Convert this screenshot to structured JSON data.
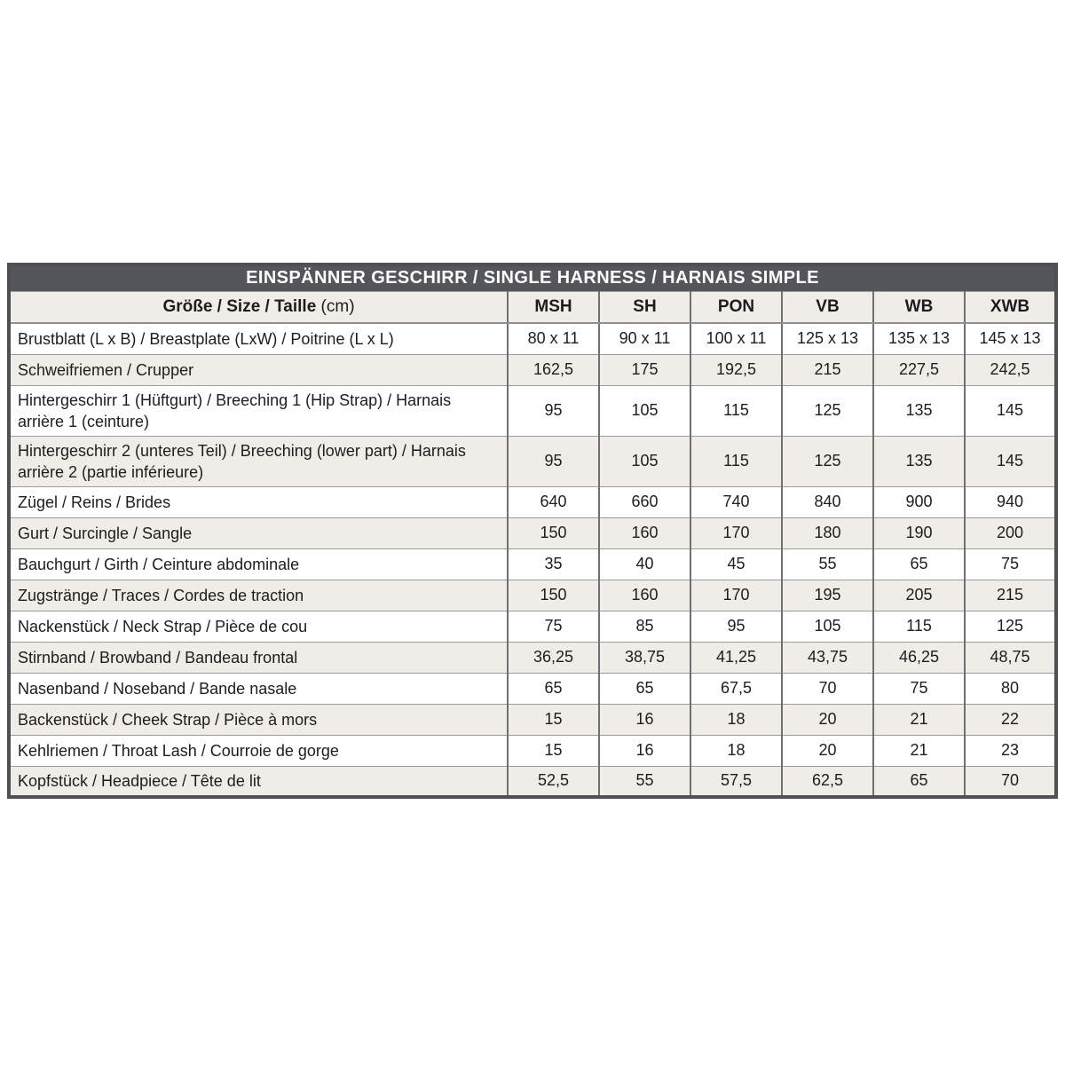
{
  "table": {
    "title": "EINSPÄNNER GESCHIRR / SINGLE HARNESS / HARNAIS SIMPLE",
    "header": {
      "label_bold": "Größe / Size / Taille",
      "label_unit": "(cm)",
      "columns": [
        "MSH",
        "SH",
        "PON",
        "VB",
        "WB",
        "XWB"
      ]
    },
    "rows": [
      {
        "label": "Brustblatt (L x B) / Breastplate (LxW) / Poitrine (L x L)",
        "values": [
          "80 x 11",
          "90 x 11",
          "100 x 11",
          "125 x 13",
          "135 x 13",
          "145 x 13"
        ]
      },
      {
        "label": "Schweifriemen / Crupper",
        "values": [
          "162,5",
          "175",
          "192,5",
          "215",
          "227,5",
          "242,5"
        ]
      },
      {
        "label": "Hintergeschirr 1 (Hüftgurt) / Breeching 1 (Hip Strap) / Harnais arrière 1 (ceinture)",
        "values": [
          "95",
          "105",
          "115",
          "125",
          "135",
          "145"
        ]
      },
      {
        "label": "Hintergeschirr 2 (unteres Teil) / Breeching (lower part) / Harnais arrière 2 (partie inférieure)",
        "values": [
          "95",
          "105",
          "115",
          "125",
          "135",
          "145"
        ]
      },
      {
        "label": "Zügel / Reins / Brides",
        "values": [
          "640",
          "660",
          "740",
          "840",
          "900",
          "940"
        ]
      },
      {
        "label": "Gurt / Surcingle / Sangle",
        "values": [
          "150",
          "160",
          "170",
          "180",
          "190",
          "200"
        ]
      },
      {
        "label": "Bauchgurt / Girth / Ceinture abdominale",
        "values": [
          "35",
          "40",
          "45",
          "55",
          "65",
          "75"
        ]
      },
      {
        "label": "Zugstränge / Traces / Cordes de traction",
        "values": [
          "150",
          "160",
          "170",
          "195",
          "205",
          "215"
        ]
      },
      {
        "label": "Nackenstück / Neck Strap / Pièce de cou",
        "values": [
          "75",
          "85",
          "95",
          "105",
          "115",
          "125"
        ]
      },
      {
        "label": "Stirnband / Browband / Bandeau frontal",
        "values": [
          "36,25",
          "38,75",
          "41,25",
          "43,75",
          "46,25",
          "48,75"
        ]
      },
      {
        "label": "Nasenband / Noseband / Bande nasale",
        "values": [
          "65",
          "65",
          "67,5",
          "70",
          "75",
          "80"
        ]
      },
      {
        "label": "Backenstück / Cheek Strap / Pièce à mors",
        "values": [
          "15",
          "16",
          "18",
          "20",
          "21",
          "22"
        ]
      },
      {
        "label": "Kehlriemen / Throat Lash / Courroie de gorge",
        "values": [
          "15",
          "16",
          "18",
          "20",
          "21",
          "23"
        ]
      },
      {
        "label": "Kopfstück / Headpiece / Tête de lit",
        "values": [
          "52,5",
          "55",
          "57,5",
          "62,5",
          "65",
          "70"
        ]
      }
    ],
    "colors": {
      "title_bg": "#54565b",
      "title_text": "#ffffff",
      "stripe_bg": "#f0ede9",
      "row_bg": "#ffffff",
      "border_dark": "#4e5054",
      "border_mid": "#6e7072",
      "border_light": "#9c9c9c",
      "text": "#1d1d1b"
    }
  }
}
